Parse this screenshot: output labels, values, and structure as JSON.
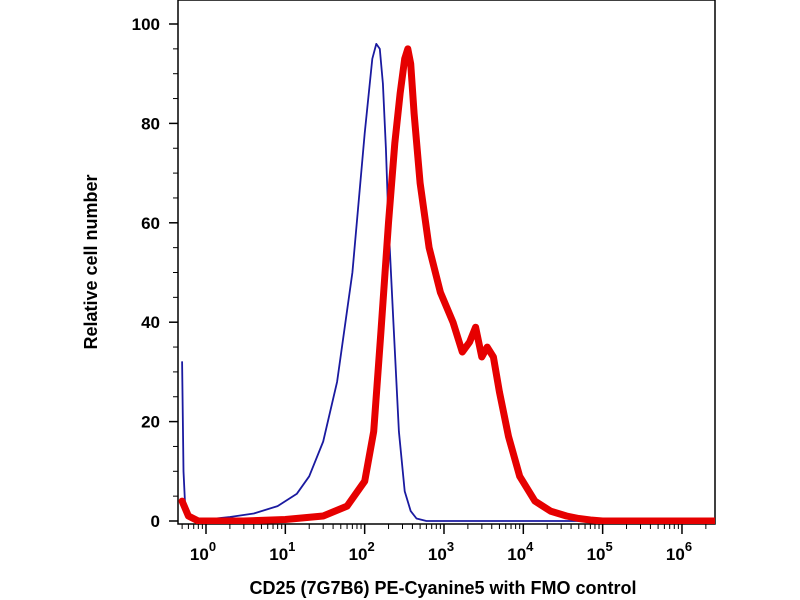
{
  "chart_data": {
    "type": "line",
    "title": "",
    "xlabel": "CD25 (7G7B6) PE-Cyanine5 with FMO control",
    "ylabel": "Relative cell number",
    "x_scale": "log",
    "xlim": [
      0.5,
      5000000
    ],
    "ylim": [
      0,
      100
    ],
    "grid": false,
    "legend": "none",
    "y_ticks": [
      "0",
      "20",
      "40",
      "60",
      "80",
      "100"
    ],
    "x_ticks": [
      {
        "base": "10",
        "exp": "0",
        "value": 1
      },
      {
        "base": "10",
        "exp": "1",
        "value": 10
      },
      {
        "base": "10",
        "exp": "2",
        "value": 100
      },
      {
        "base": "10",
        "exp": "3",
        "value": 1000
      },
      {
        "base": "10",
        "exp": "4",
        "value": 10000
      },
      {
        "base": "10",
        "exp": "5",
        "value": 100000
      },
      {
        "base": "10",
        "exp": "6",
        "value": 1000000
      }
    ],
    "series": [
      {
        "color": "#1a1aa0",
        "line": "thin",
        "x": [
          0.5,
          0.52,
          0.55,
          0.6,
          0.75,
          1,
          2,
          4,
          8,
          14,
          20,
          30,
          45,
          70,
          100,
          125,
          140,
          155,
          170,
          185,
          200,
          230,
          270,
          320,
          380,
          450,
          600,
          1000,
          10000,
          100000,
          1000000,
          5000000
        ],
        "y": [
          32,
          10,
          2,
          0.5,
          0,
          0.3,
          0.8,
          1.5,
          3,
          5.5,
          9,
          16,
          28,
          50,
          78,
          93,
          96,
          95,
          88,
          75,
          60,
          40,
          18,
          6,
          2,
          0.5,
          0,
          0,
          0,
          0,
          0,
          0
        ]
      },
      {
        "color": "#e60000",
        "line": "thick",
        "x": [
          0.5,
          0.6,
          0.8,
          1,
          3,
          10,
          30,
          60,
          100,
          130,
          160,
          200,
          240,
          280,
          320,
          350,
          380,
          420,
          500,
          650,
          900,
          1300,
          1700,
          2100,
          2500,
          3000,
          3500,
          4200,
          5000,
          6500,
          9000,
          14000,
          22000,
          35000,
          50000,
          70000,
          100000,
          1000000,
          5000000
        ],
        "y": [
          4,
          1,
          0,
          0,
          0,
          0.3,
          1,
          3,
          8,
          18,
          38,
          60,
          76,
          86,
          93,
          95,
          92,
          82,
          68,
          55,
          46,
          40,
          34,
          36,
          39,
          33,
          35,
          33,
          26,
          17,
          9,
          4,
          2,
          1,
          0.5,
          0.2,
          0,
          0,
          0
        ]
      }
    ]
  }
}
